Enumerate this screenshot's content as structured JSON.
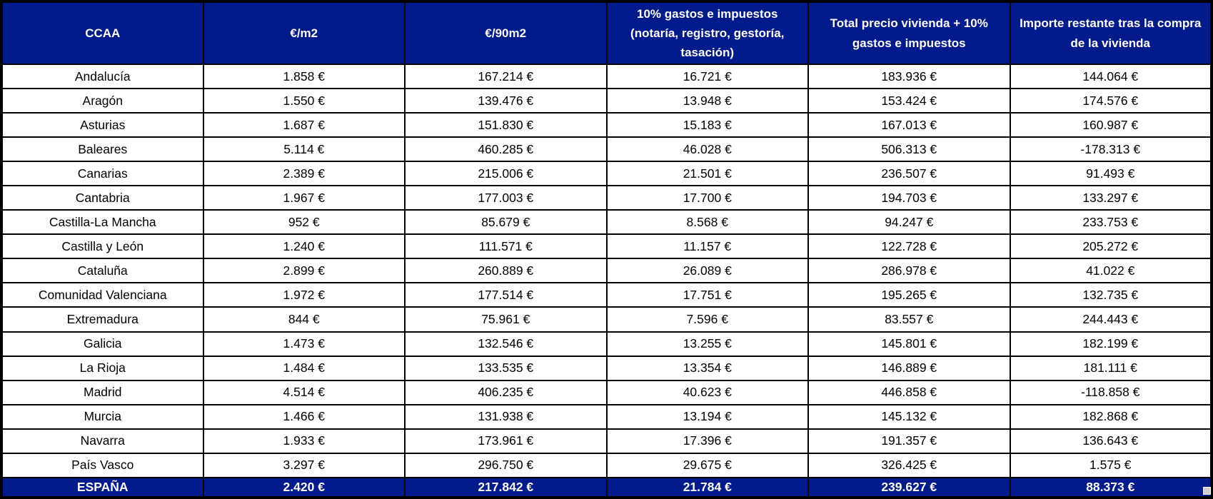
{
  "chart_data": {
    "type": "table",
    "columns": [
      "CCAA",
      "€/m2",
      "€/90m2",
      "10% gastos e impuestos (notaría, registro, gestoría, tasación)",
      "Total precio vivienda + 10% gastos e impuestos",
      "Importe restante tras la compra de la vivienda"
    ],
    "rows": [
      [
        "Andalucía",
        "1.858 €",
        "167.214 €",
        "16.721 €",
        "183.936 €",
        "144.064 €"
      ],
      [
        "Aragón",
        "1.550 €",
        "139.476 €",
        "13.948 €",
        "153.424 €",
        "174.576 €"
      ],
      [
        "Asturias",
        "1.687 €",
        "151.830 €",
        "15.183 €",
        "167.013 €",
        "160.987 €"
      ],
      [
        "Baleares",
        "5.114 €",
        "460.285 €",
        "46.028 €",
        "506.313 €",
        "-178.313 €"
      ],
      [
        "Canarias",
        "2.389 €",
        "215.006 €",
        "21.501 €",
        "236.507 €",
        "91.493 €"
      ],
      [
        "Cantabria",
        "1.967 €",
        "177.003 €",
        "17.700 €",
        "194.703 €",
        "133.297 €"
      ],
      [
        "Castilla-La Mancha",
        "952 €",
        "85.679 €",
        "8.568 €",
        "94.247 €",
        "233.753 €"
      ],
      [
        "Castilla y León",
        "1.240 €",
        "111.571 €",
        "11.157 €",
        "122.728 €",
        "205.272 €"
      ],
      [
        "Cataluña",
        "2.899 €",
        "260.889 €",
        "26.089 €",
        "286.978 €",
        "41.022 €"
      ],
      [
        "Comunidad Valenciana",
        "1.972 €",
        "177.514 €",
        "17.751 €",
        "195.265 €",
        "132.735 €"
      ],
      [
        "Extremadura",
        "844 €",
        "75.961 €",
        "7.596 €",
        "83.557 €",
        "244.443 €"
      ],
      [
        "Galicia",
        "1.473 €",
        "132.546 €",
        "13.255 €",
        "145.801 €",
        "182.199 €"
      ],
      [
        "La Rioja",
        "1.484 €",
        "133.535 €",
        "13.354 €",
        "146.889 €",
        "181.111 €"
      ],
      [
        "Madrid",
        "4.514 €",
        "406.235 €",
        "40.623 €",
        "446.858 €",
        "-118.858 €"
      ],
      [
        "Murcia",
        "1.466 €",
        "131.938 €",
        "13.194 €",
        "145.132 €",
        "182.868 €"
      ],
      [
        "Navarra",
        "1.933 €",
        "173.961 €",
        "17.396 €",
        "191.357 €",
        "136.643 €"
      ],
      [
        "País Vasco",
        "3.297 €",
        "296.750 €",
        "29.675 €",
        "326.425 €",
        "1.575 €"
      ]
    ],
    "footer": [
      "ESPAÑA",
      "2.420 €",
      "217.842 €",
      "21.784 €",
      "239.627 €",
      "88.373 €"
    ],
    "layout": {
      "grid": "black cell borders on all cells",
      "legend": "none",
      "header_rows": 1,
      "total_row": "ESPAÑA (highlighted blue like header)"
    }
  },
  "colors": {
    "header_bg": "#011A8C",
    "header_text": "#FFFFFF",
    "body_bg": "#FFFFFF",
    "body_text": "#000000",
    "border": "#000000",
    "fill_handle": "#CFCFCF"
  }
}
